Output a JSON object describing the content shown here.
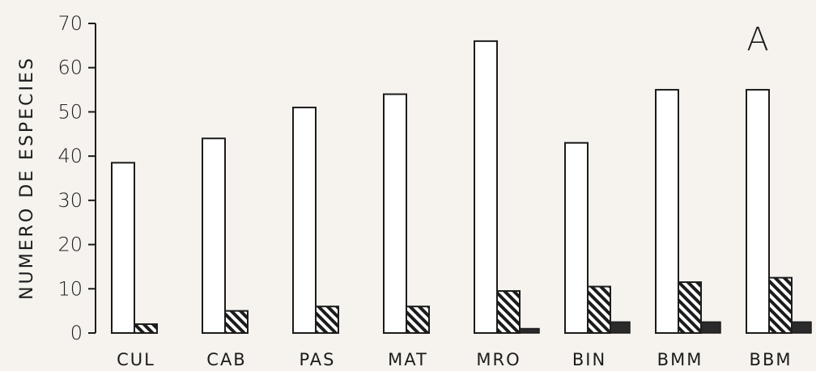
{
  "chart_data": {
    "type": "bar",
    "panel_label": "A",
    "ylabel": "NUMERO DE ESPECIES",
    "xlabel": "",
    "ylim": [
      0,
      70
    ],
    "yticks": [
      0,
      10,
      20,
      30,
      40,
      50,
      60,
      70
    ],
    "categories": [
      "CUL",
      "CAB",
      "PAS",
      "MAT",
      "MRO",
      "BIN",
      "BMM",
      "BBM"
    ],
    "series": [
      {
        "style": "open",
        "values": [
          38.5,
          44,
          51,
          54,
          66,
          43,
          55,
          55
        ]
      },
      {
        "style": "hatched",
        "values": [
          2,
          5,
          6,
          6,
          9.5,
          10.5,
          11.5,
          12.5
        ]
      },
      {
        "style": "solid",
        "values": [
          0,
          0,
          0,
          0,
          1,
          2.5,
          2.5,
          2.5
        ]
      }
    ],
    "grid": false,
    "legend": "none",
    "colors": {
      "stroke": "#1c1c1c",
      "open_fill": "#ffffff",
      "solid_fill": "#2a2a2a",
      "background": "#f6f3ee"
    }
  }
}
